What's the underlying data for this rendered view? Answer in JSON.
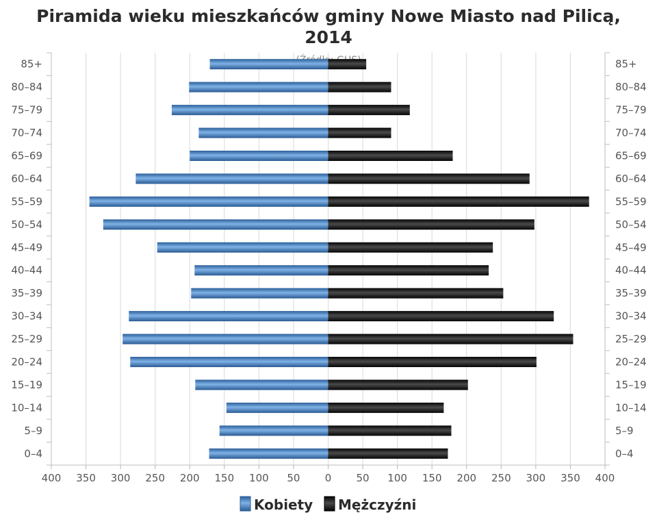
{
  "chart_data": {
    "type": "bar",
    "orientation": "horizontal",
    "layout": "population-pyramid",
    "title": "Piramida wieku mieszkańców gminy Nowe Miasto nad Pilicą,",
    "title_line2": "2014",
    "subtitle": "(Źródło: GUS)",
    "categories": [
      "85+",
      "80–84",
      "75–79",
      "70–74",
      "65–69",
      "60–64",
      "55–59",
      "50–54",
      "45–49",
      "40–44",
      "35–39",
      "30–34",
      "25–29",
      "20–24",
      "15–19",
      "10–14",
      "5–9",
      "0–4"
    ],
    "series": [
      {
        "name": "Kobiety",
        "side": "left",
        "color": "#4a86c6",
        "values": [
          171,
          201,
          226,
          187,
          200,
          278,
          345,
          325,
          247,
          193,
          198,
          288,
          297,
          286,
          192,
          147,
          157,
          172
        ]
      },
      {
        "name": "Mężczyźni",
        "side": "right",
        "color": "#1a1a1a",
        "values": [
          55,
          91,
          118,
          91,
          180,
          291,
          377,
          298,
          238,
          232,
          253,
          326,
          354,
          301,
          202,
          167,
          178,
          173
        ]
      }
    ],
    "xlim": [
      -400,
      400
    ],
    "x_ticks": [
      -400,
      -350,
      -300,
      -250,
      -200,
      -150,
      -100,
      -50,
      0,
      50,
      100,
      150,
      200,
      250,
      300,
      350,
      400
    ],
    "x_tick_labels": [
      "400",
      "350",
      "300",
      "250",
      "200",
      "150",
      "100",
      "50",
      "0",
      "50",
      "100",
      "150",
      "200",
      "250",
      "300",
      "350",
      "400"
    ],
    "grid": true,
    "legend_position": "bottom-center",
    "category_labels_on_both_sides": true
  }
}
